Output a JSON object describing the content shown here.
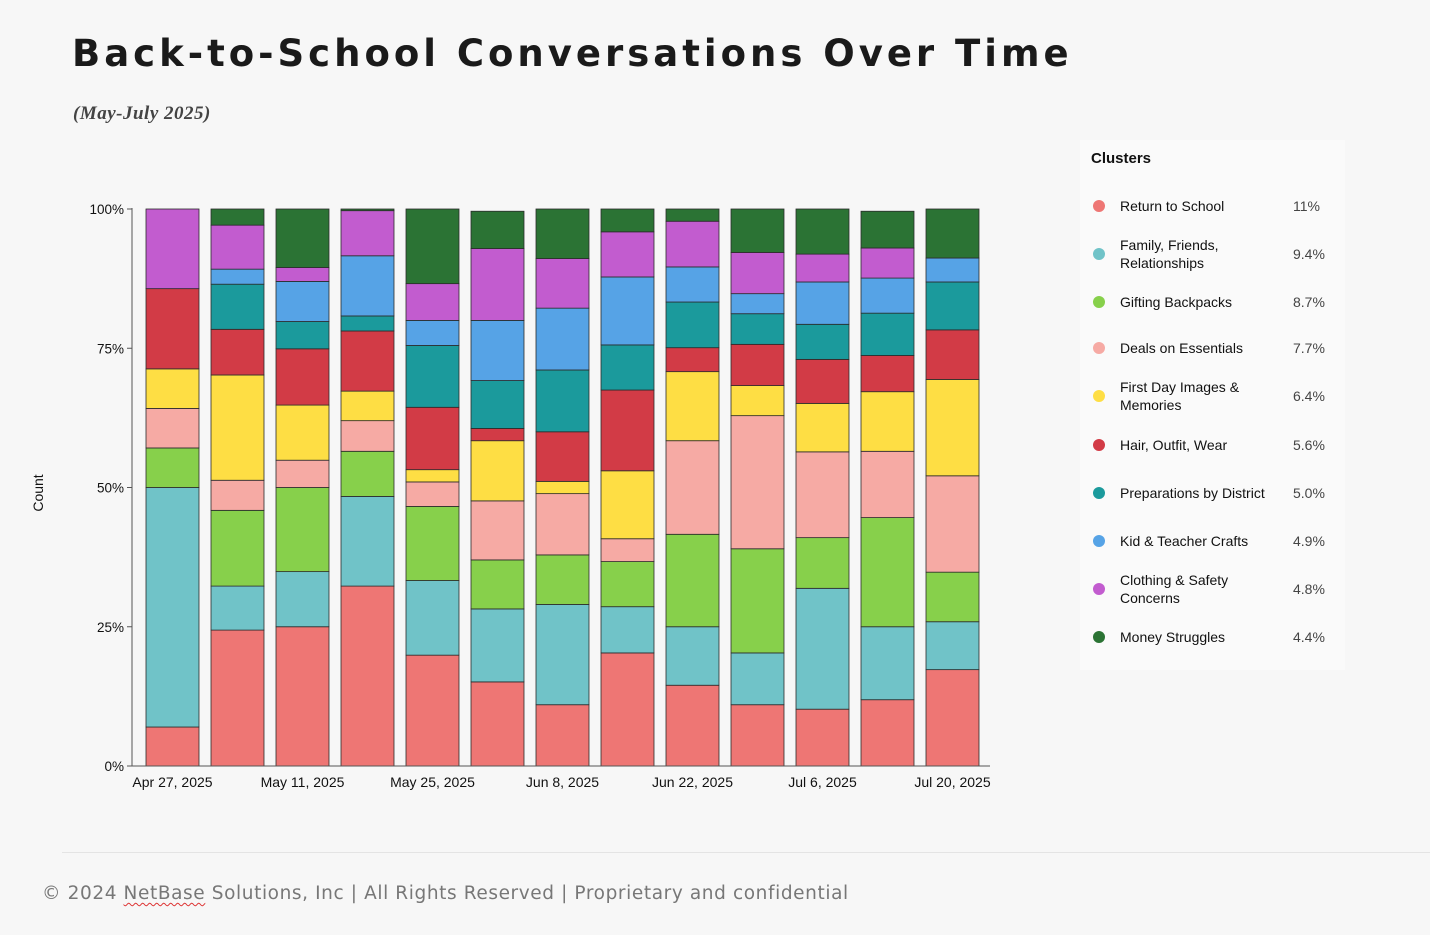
{
  "page": {
    "title": "Back-to-School Conversations Over Time",
    "subtitle": "(May-July 2025)"
  },
  "legend": {
    "title": "Clusters",
    "items": [
      {
        "label": "Return to School",
        "pct": "11%",
        "color": "#ee7674"
      },
      {
        "label": "Family, Friends, Relationships",
        "pct": "9.4%",
        "color": "#70c3c8"
      },
      {
        "label": "Gifting Backpacks",
        "pct": "8.7%",
        "color": "#87d04b"
      },
      {
        "label": "Deals on Essentials",
        "pct": "7.7%",
        "color": "#f6aaa4"
      },
      {
        "label": "First Day Images & Memories",
        "pct": "6.4%",
        "color": "#fede44"
      },
      {
        "label": "Hair, Outfit, Wear",
        "pct": "5.6%",
        "color": "#d23b46"
      },
      {
        "label": "Preparations by District",
        "pct": "5.0%",
        "color": "#1b9a9c"
      },
      {
        "label": "Kid & Teacher Crafts",
        "pct": "4.9%",
        "color": "#56a3e6"
      },
      {
        "label": "Clothing & Safety Concerns",
        "pct": "4.8%",
        "color": "#c25ccf"
      },
      {
        "label": "Money Struggles",
        "pct": "4.4%",
        "color": "#2b7334"
      }
    ]
  },
  "footer": {
    "prefix": "© 2024 ",
    "brand": "NetBase",
    "suffix": " Solutions, Inc | All Rights Reserved | Proprietary and confidential"
  },
  "chart_data": {
    "type": "bar",
    "stacked": true,
    "normalized": true,
    "title": "",
    "xlabel": "",
    "ylabel": "Count",
    "ylim": [
      0,
      100
    ],
    "yticks": [
      "0%",
      "25%",
      "50%",
      "75%",
      "100%"
    ],
    "xtick_labels": [
      "Apr 27, 2025",
      "May 11, 2025",
      "May 25, 2025",
      "Jun 8, 2025",
      "Jun 22, 2025",
      "Jul 6, 2025",
      "Jul 20, 2025"
    ],
    "categories": [
      "Apr 27, 2025",
      "May 4, 2025",
      "May 11, 2025",
      "May 18, 2025",
      "May 25, 2025",
      "Jun 1, 2025",
      "Jun 8, 2025",
      "Jun 15, 2025",
      "Jun 22, 2025",
      "Jun 29, 2025",
      "Jul 6, 2025",
      "Jul 13, 2025",
      "Jul 20, 2025"
    ],
    "series": [
      {
        "name": "Return to School",
        "color": "#ee7674",
        "values": [
          7.0,
          24.4,
          25.0,
          32.3,
          19.9,
          15.1,
          11.0,
          20.3,
          14.5,
          11.0,
          10.2,
          11.9,
          17.3
        ]
      },
      {
        "name": "Family, Friends, Relationships",
        "color": "#70c3c8",
        "values": [
          43.0,
          7.9,
          9.9,
          16.1,
          13.4,
          13.1,
          18.0,
          8.3,
          10.5,
          9.3,
          21.7,
          13.1,
          8.6
        ]
      },
      {
        "name": "Gifting Backpacks",
        "color": "#87d04b",
        "values": [
          7.1,
          13.6,
          15.1,
          8.1,
          13.3,
          8.8,
          8.9,
          8.1,
          16.6,
          18.7,
          9.1,
          19.6,
          8.9
        ]
      },
      {
        "name": "Deals on Essentials",
        "color": "#f6aaa4",
        "values": [
          7.1,
          5.4,
          4.9,
          5.5,
          4.4,
          10.6,
          11.0,
          4.1,
          16.8,
          23.9,
          15.4,
          11.9,
          17.3
        ]
      },
      {
        "name": "First Day Images & Memories",
        "color": "#fede44",
        "values": [
          7.1,
          18.9,
          9.9,
          5.3,
          2.2,
          10.8,
          2.2,
          12.2,
          12.4,
          5.4,
          8.7,
          10.7,
          17.3
        ]
      },
      {
        "name": "Hair, Outfit, Wear",
        "color": "#d23b46",
        "values": [
          14.4,
          8.2,
          10.1,
          10.8,
          11.2,
          2.2,
          8.9,
          14.5,
          4.3,
          7.4,
          7.9,
          6.5,
          8.9
        ]
      },
      {
        "name": "Preparations by District",
        "color": "#1b9a9c",
        "values": [
          0,
          8.1,
          4.9,
          2.7,
          11.1,
          8.6,
          11.1,
          8.1,
          8.2,
          5.5,
          6.3,
          7.6,
          8.6
        ]
      },
      {
        "name": "Kid & Teacher Crafts",
        "color": "#56a3e6",
        "values": [
          0,
          2.7,
          7.2,
          10.8,
          4.5,
          10.8,
          11.1,
          12.2,
          6.3,
          3.6,
          7.6,
          6.3,
          4.3
        ]
      },
      {
        "name": "Clothing & Safety Concerns",
        "color": "#c25ccf",
        "values": [
          14.3,
          7.9,
          2.5,
          8.1,
          6.6,
          12.9,
          8.9,
          8.1,
          8.2,
          7.4,
          5.0,
          5.4,
          0
        ]
      },
      {
        "name": "Money Struggles",
        "color": "#2b7334",
        "values": [
          0,
          2.9,
          10.5,
          0.3,
          13.4,
          6.7,
          8.9,
          4.1,
          2.2,
          7.8,
          8.1,
          6.6,
          8.8
        ]
      }
    ]
  }
}
